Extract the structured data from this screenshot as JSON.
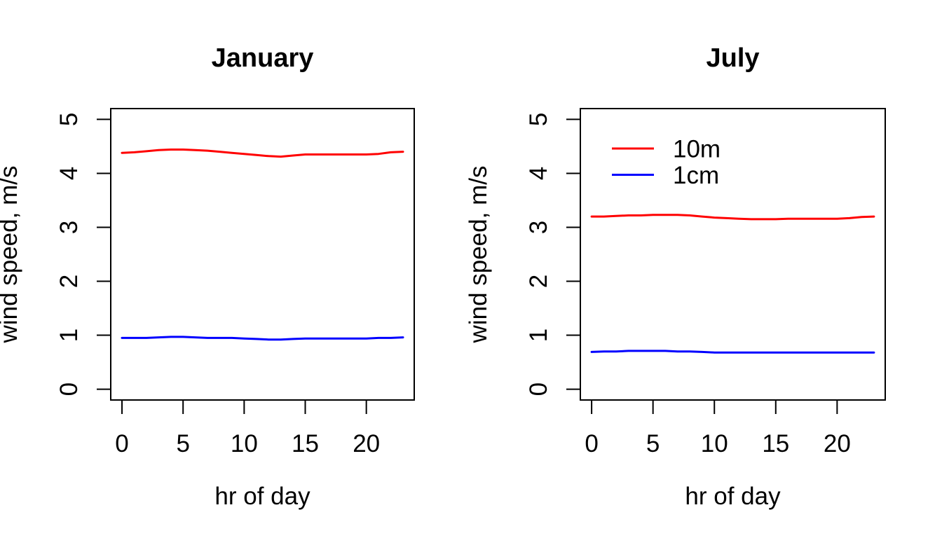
{
  "figure": {
    "background": "#FFFFFF",
    "axis_color": "#000000"
  },
  "chart_data": [
    {
      "id": "january",
      "type": "line",
      "title": "January",
      "xlabel": "hr of day",
      "ylabel": "wind speed, m/s",
      "xlim": [
        0,
        23
      ],
      "ylim": [
        0,
        5
      ],
      "xticks": [
        0,
        5,
        10,
        15,
        20
      ],
      "yticks": [
        0,
        1,
        2,
        3,
        4,
        5
      ],
      "grid": false,
      "legend": {
        "show": false
      },
      "x": [
        0,
        1,
        2,
        3,
        4,
        5,
        6,
        7,
        8,
        9,
        10,
        11,
        12,
        13,
        14,
        15,
        16,
        17,
        18,
        19,
        20,
        21,
        22,
        23
      ],
      "series": [
        {
          "name": "10m",
          "color": "#FF0000",
          "values": [
            4.38,
            4.39,
            4.41,
            4.43,
            4.44,
            4.44,
            4.43,
            4.42,
            4.4,
            4.38,
            4.36,
            4.34,
            4.32,
            4.31,
            4.33,
            4.35,
            4.35,
            4.35,
            4.35,
            4.35,
            4.35,
            4.36,
            4.39,
            4.4
          ]
        },
        {
          "name": "1cm",
          "color": "#0000FF",
          "values": [
            0.95,
            0.95,
            0.95,
            0.96,
            0.97,
            0.97,
            0.96,
            0.95,
            0.95,
            0.95,
            0.94,
            0.93,
            0.92,
            0.92,
            0.93,
            0.94,
            0.94,
            0.94,
            0.94,
            0.94,
            0.94,
            0.95,
            0.95,
            0.96
          ]
        }
      ]
    },
    {
      "id": "july",
      "type": "line",
      "title": "July",
      "xlabel": "hr of day",
      "ylabel": "wind speed, m/s",
      "xlim": [
        0,
        23
      ],
      "ylim": [
        0,
        5
      ],
      "xticks": [
        0,
        5,
        10,
        15,
        20
      ],
      "yticks": [
        0,
        1,
        2,
        3,
        4,
        5
      ],
      "grid": false,
      "legend": {
        "show": true,
        "position": "topleft",
        "entries": [
          "10m",
          "1cm"
        ]
      },
      "x": [
        0,
        1,
        2,
        3,
        4,
        5,
        6,
        7,
        8,
        9,
        10,
        11,
        12,
        13,
        14,
        15,
        16,
        17,
        18,
        19,
        20,
        21,
        22,
        23
      ],
      "series": [
        {
          "name": "10m",
          "color": "#FF0000",
          "values": [
            3.2,
            3.2,
            3.21,
            3.22,
            3.22,
            3.23,
            3.23,
            3.23,
            3.22,
            3.2,
            3.18,
            3.17,
            3.16,
            3.15,
            3.15,
            3.15,
            3.16,
            3.16,
            3.16,
            3.16,
            3.16,
            3.17,
            3.19,
            3.2
          ]
        },
        {
          "name": "1cm",
          "color": "#0000FF",
          "values": [
            0.69,
            0.7,
            0.7,
            0.71,
            0.71,
            0.71,
            0.71,
            0.7,
            0.7,
            0.69,
            0.68,
            0.68,
            0.68,
            0.68,
            0.68,
            0.68,
            0.68,
            0.68,
            0.68,
            0.68,
            0.68,
            0.68,
            0.68,
            0.68
          ]
        }
      ]
    }
  ]
}
